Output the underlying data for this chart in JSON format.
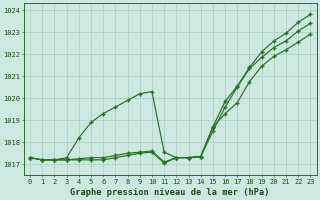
{
  "title": "Graphe pression niveau de la mer (hPa)",
  "background_color": "#cce8e0",
  "grid_color": "#aaccc4",
  "line_color": "#2a6e2a",
  "xlim": [
    -0.5,
    23.5
  ],
  "ylim": [
    1016.5,
    1024.3
  ],
  "yticks": [
    1017,
    1018,
    1019,
    1020,
    1021,
    1022,
    1023,
    1024
  ],
  "xticks": [
    0,
    1,
    2,
    3,
    4,
    5,
    6,
    7,
    8,
    9,
    10,
    11,
    12,
    13,
    14,
    15,
    16,
    17,
    18,
    19,
    20,
    21,
    22,
    23
  ],
  "series1": [
    1017.3,
    1017.2,
    1017.2,
    1017.3,
    1018.2,
    1018.9,
    1019.3,
    1019.6,
    1019.9,
    1020.2,
    1020.3,
    1017.55,
    1017.3,
    1017.3,
    1017.35,
    1018.7,
    1019.85,
    1020.55,
    1021.4,
    1022.1,
    1022.6,
    1022.95,
    1023.45,
    1023.8
  ],
  "series2": [
    1017.3,
    1017.2,
    1017.2,
    1017.2,
    1017.25,
    1017.3,
    1017.3,
    1017.4,
    1017.5,
    1017.55,
    1017.6,
    1017.1,
    1017.3,
    1017.3,
    1017.35,
    1018.5,
    1019.6,
    1020.5,
    1021.35,
    1021.85,
    1022.3,
    1022.6,
    1023.05,
    1023.4
  ],
  "series3": [
    1017.3,
    1017.2,
    1017.2,
    1017.2,
    1017.2,
    1017.2,
    1017.2,
    1017.3,
    1017.4,
    1017.5,
    1017.55,
    1017.05,
    1017.3,
    1017.3,
    1017.35,
    1018.7,
    1019.3,
    1019.8,
    1020.75,
    1021.45,
    1021.9,
    1022.2,
    1022.55,
    1022.9
  ]
}
